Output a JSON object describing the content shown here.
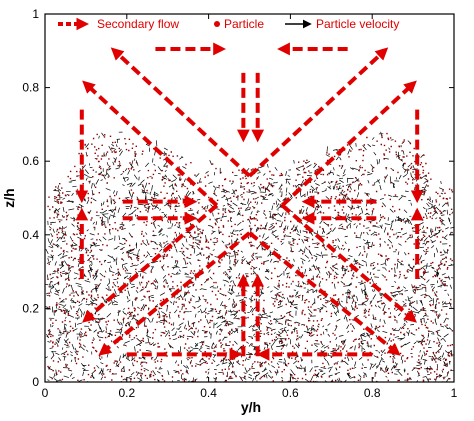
{
  "chart_data": {
    "type": "scatter",
    "xlabel": "y/h",
    "ylabel": "z/h",
    "xlim": [
      0,
      1
    ],
    "ylim": [
      0,
      1
    ],
    "xticks": [
      0,
      0.2,
      0.4,
      0.6,
      0.8,
      1
    ],
    "yticks": [
      0,
      0.2,
      0.4,
      0.6,
      0.8,
      1
    ],
    "tick_labels_x": [
      "0",
      "0.2",
      "0.4",
      "0.6",
      "0.8",
      "1"
    ],
    "tick_labels_y": [
      "0",
      "0.2",
      "0.4",
      "0.6",
      "0.8",
      "1"
    ],
    "grid": false,
    "legend": {
      "placement": "top",
      "entries": [
        {
          "label": "Secondary flow",
          "marker": "dashed-arrow",
          "color": "#e00000"
        },
        {
          "label": "Particle",
          "marker": "dot",
          "color": "#e00000"
        },
        {
          "label": "Particle velocity",
          "marker": "arrow",
          "color": "#000000"
        }
      ]
    },
    "particle_bed": {
      "description_units": "data",
      "upper_boundary": [
        [
          0,
          0.51
        ],
        [
          0.05,
          0.56
        ],
        [
          0.09,
          0.66
        ],
        [
          0.12,
          0.68
        ],
        [
          0.2,
          0.68
        ],
        [
          0.3,
          0.63
        ],
        [
          0.38,
          0.6
        ],
        [
          0.5,
          0.58
        ],
        [
          0.62,
          0.6
        ],
        [
          0.7,
          0.63
        ],
        [
          0.8,
          0.68
        ],
        [
          0.88,
          0.68
        ],
        [
          0.91,
          0.66
        ],
        [
          0.95,
          0.56
        ],
        [
          1,
          0.53
        ]
      ],
      "particle_color": "#8b0000",
      "velocity_color": "#000000"
    },
    "secondary_flow_arrows": [
      {
        "from": [
          0.27,
          0.905
        ],
        "to": [
          0.43,
          0.905
        ]
      },
      {
        "from": [
          0.74,
          0.905
        ],
        "to": [
          0.58,
          0.905
        ]
      },
      {
        "from": [
          0.485,
          0.84
        ],
        "to": [
          0.485,
          0.665
        ]
      },
      {
        "from": [
          0.52,
          0.84
        ],
        "to": [
          0.52,
          0.665
        ]
      },
      {
        "from": [
          0.5,
          0.56
        ],
        "to": [
          0.17,
          0.9
        ]
      },
      {
        "from": [
          0.5,
          0.56
        ],
        "to": [
          0.83,
          0.9
        ]
      },
      {
        "from": [
          0.42,
          0.48
        ],
        "to": [
          0.1,
          0.81
        ]
      },
      {
        "from": [
          0.58,
          0.48
        ],
        "to": [
          0.9,
          0.81
        ]
      },
      {
        "from": [
          0.09,
          0.74
        ],
        "to": [
          0.09,
          0.5
        ]
      },
      {
        "from": [
          0.91,
          0.74
        ],
        "to": [
          0.91,
          0.5
        ]
      },
      {
        "from": [
          0.09,
          0.28
        ],
        "to": [
          0.09,
          0.46
        ]
      },
      {
        "from": [
          0.91,
          0.28
        ],
        "to": [
          0.91,
          0.46
        ]
      },
      {
        "from": [
          0.19,
          0.49
        ],
        "to": [
          0.36,
          0.49
        ]
      },
      {
        "from": [
          0.81,
          0.49
        ],
        "to": [
          0.64,
          0.49
        ]
      },
      {
        "from": [
          0.19,
          0.445
        ],
        "to": [
          0.36,
          0.445
        ]
      },
      {
        "from": [
          0.81,
          0.445
        ],
        "to": [
          0.64,
          0.445
        ]
      },
      {
        "from": [
          0.5,
          0.405
        ],
        "to": [
          0.14,
          0.08
        ]
      },
      {
        "from": [
          0.5,
          0.405
        ],
        "to": [
          0.86,
          0.08
        ]
      },
      {
        "from": [
          0.42,
          0.48
        ],
        "to": [
          0.1,
          0.17
        ]
      },
      {
        "from": [
          0.58,
          0.48
        ],
        "to": [
          0.9,
          0.17
        ]
      },
      {
        "from": [
          0.2,
          0.075
        ],
        "to": [
          0.47,
          0.075
        ]
      },
      {
        "from": [
          0.8,
          0.075
        ],
        "to": [
          0.53,
          0.075
        ]
      },
      {
        "from": [
          0.485,
          0.07
        ],
        "to": [
          0.485,
          0.28
        ]
      },
      {
        "from": [
          0.52,
          0.07
        ],
        "to": [
          0.52,
          0.28
        ]
      }
    ]
  }
}
